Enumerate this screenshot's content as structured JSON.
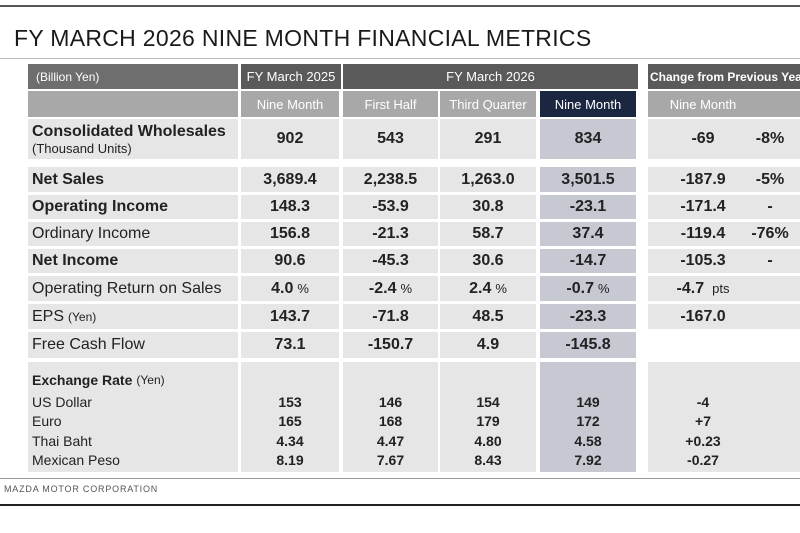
{
  "title": "FY MARCH 2026 NINE MONTH FINANCIAL METRICS",
  "header": {
    "unit": "(Billion Yen)",
    "fy2025": "FY March 2025",
    "fy2026": "FY March 2026",
    "change": "Change from Previous Yea",
    "sub": [
      "Nine Month",
      "First Half",
      "Third Quarter",
      "Nine Month",
      "Nine Month"
    ]
  },
  "rows": [
    {
      "label": "Consolidated Wholesales",
      "sub": "(Thousand Units)",
      "cells": [
        "902",
        "543",
        "291",
        "834"
      ],
      "change": [
        "-69",
        "-8%"
      ]
    },
    {
      "label": "Net Sales",
      "cells": [
        "3,689.4",
        "2,238.5",
        "1,263.0",
        "3,501.5"
      ],
      "change": [
        "-187.9",
        "-5%"
      ]
    },
    {
      "label": "Operating Income",
      "cells": [
        "148.3",
        "-53.9",
        "30.8",
        "-23.1"
      ],
      "change": [
        "-171.4",
        "-"
      ]
    },
    {
      "label": "Ordinary Income",
      "cells": [
        "156.8",
        "-21.3",
        "58.7",
        "37.4"
      ],
      "change": [
        "-119.4",
        "-76%"
      ]
    },
    {
      "label": "Net Income",
      "cells": [
        "90.6",
        "-45.3",
        "30.6",
        "-14.7"
      ],
      "change": [
        "-105.3",
        "-"
      ]
    },
    {
      "label": "Operating Return on Sales",
      "cells": [
        "4.0",
        "-2.4",
        "2.4",
        "-0.7"
      ],
      "unit": "%",
      "change": [
        "-4.7"
      ],
      "change_unit": "pts"
    },
    {
      "label": "EPS",
      "sub": "(Yen)",
      "cells": [
        "143.7",
        "-71.8",
        "48.5",
        "-23.3"
      ],
      "change": [
        "-167.0"
      ]
    },
    {
      "label": "Free Cash Flow",
      "cells": [
        "73.1",
        "-150.7",
        "4.9",
        "-145.8"
      ],
      "change": []
    }
  ],
  "exchange": {
    "label": "Exchange Rate",
    "unit": "(Yen)",
    "rows": [
      {
        "label": "US Dollar",
        "cells": [
          "153",
          "146",
          "154",
          "149"
        ],
        "change": "-4"
      },
      {
        "label": "Euro",
        "cells": [
          "165",
          "168",
          "179",
          "172"
        ],
        "change": "+7"
      },
      {
        "label": "Thai Baht",
        "cells": [
          "4.34",
          "4.47",
          "4.80",
          "4.58"
        ],
        "change": "+0.23"
      },
      {
        "label": "Mexican Peso",
        "cells": [
          "8.19",
          "7.67",
          "8.43",
          "7.92"
        ],
        "change": "-0.27"
      }
    ]
  },
  "footer": "MAZDA MOTOR CORPORATION"
}
